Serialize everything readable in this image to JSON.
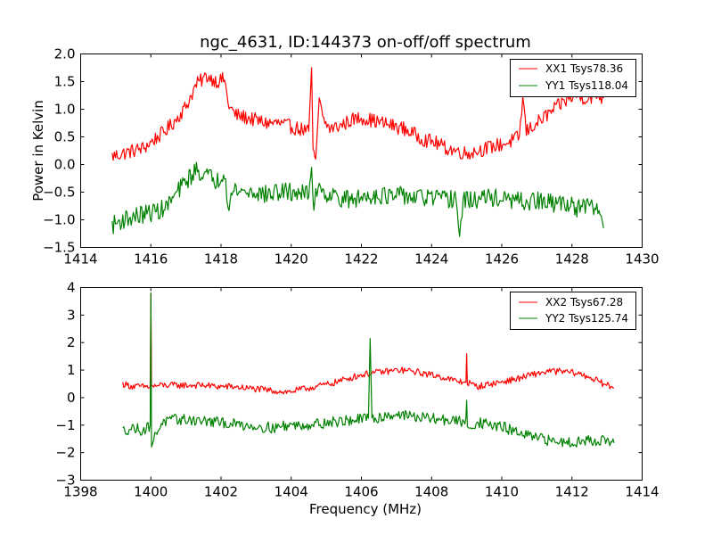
{
  "chart_data": [
    {
      "type": "line",
      "title": "ngc_4631, ID:144373 on-off/off spectrum",
      "xlabel": "",
      "ylabel": "Power in Kelvin",
      "xlim": [
        1414,
        1430
      ],
      "ylim": [
        -1.5,
        2.0
      ],
      "xticks": [
        "1414",
        "1416",
        "1418",
        "1420",
        "1422",
        "1424",
        "1426",
        "1428",
        "1430"
      ],
      "yticks": [
        "−1.5",
        "−1.0",
        "−0.5",
        "0.0",
        "0.5",
        "1.0",
        "1.5",
        "2.0"
      ],
      "xtick_values": [
        1414,
        1416,
        1418,
        1420,
        1422,
        1424,
        1426,
        1428,
        1430
      ],
      "ytick_values": [
        -1.5,
        -1.0,
        -0.5,
        0.0,
        0.5,
        1.0,
        1.5,
        2.0
      ],
      "grid": false,
      "legend_position": "top-right",
      "series": [
        {
          "name": "XX1 Tsys78.36",
          "color": "#ff0000",
          "x": [
            1414.9,
            1415.2,
            1415.5,
            1415.8,
            1416.1,
            1416.4,
            1416.7,
            1417.0,
            1417.3,
            1417.6,
            1417.9,
            1418.1,
            1418.2,
            1418.4,
            1418.7,
            1419.0,
            1419.3,
            1419.6,
            1419.9,
            1420.2,
            1420.5,
            1420.58,
            1420.62,
            1420.7,
            1420.8,
            1420.9,
            1421.1,
            1421.4,
            1421.7,
            1422.0,
            1422.3,
            1422.6,
            1422.9,
            1423.2,
            1423.5,
            1423.8,
            1424.1,
            1424.4,
            1424.7,
            1425.0,
            1425.3,
            1425.6,
            1425.9,
            1426.2,
            1426.5,
            1426.6,
            1426.7,
            1426.9,
            1427.2,
            1427.5,
            1427.8,
            1428.1,
            1428.4,
            1428.7,
            1428.9
          ],
          "y": [
            0.15,
            0.2,
            0.25,
            0.3,
            0.45,
            0.6,
            0.8,
            1.05,
            1.45,
            1.6,
            1.5,
            1.55,
            1.1,
            0.9,
            0.85,
            0.8,
            0.75,
            0.75,
            0.7,
            0.65,
            0.6,
            1.75,
            0.2,
            0.1,
            1.2,
            0.8,
            0.65,
            0.7,
            0.8,
            0.85,
            0.8,
            0.75,
            0.7,
            0.65,
            0.55,
            0.45,
            0.4,
            0.3,
            0.25,
            0.2,
            0.25,
            0.3,
            0.35,
            0.4,
            0.5,
            1.2,
            0.6,
            0.7,
            0.85,
            1.0,
            1.15,
            1.25,
            1.2,
            1.25,
            1.2
          ]
        },
        {
          "name": "YY1 Tsys118.04",
          "color": "#008000",
          "x": [
            1414.9,
            1415.2,
            1415.5,
            1415.8,
            1416.1,
            1416.4,
            1416.7,
            1417.0,
            1417.3,
            1417.6,
            1417.9,
            1418.1,
            1418.2,
            1418.4,
            1418.7,
            1419.0,
            1419.3,
            1419.6,
            1419.9,
            1420.2,
            1420.5,
            1420.58,
            1420.62,
            1420.7,
            1420.8,
            1420.9,
            1421.1,
            1421.4,
            1421.7,
            1422.0,
            1422.3,
            1422.6,
            1422.9,
            1423.2,
            1423.5,
            1423.8,
            1424.1,
            1424.4,
            1424.7,
            1424.8,
            1424.9,
            1425.2,
            1425.5,
            1425.8,
            1426.1,
            1426.4,
            1426.7,
            1427.0,
            1427.3,
            1427.6,
            1427.9,
            1428.2,
            1428.5,
            1428.8,
            1428.9
          ],
          "y": [
            -1.1,
            -1.0,
            -0.95,
            -0.9,
            -0.85,
            -0.8,
            -0.55,
            -0.3,
            -0.1,
            -0.2,
            -0.3,
            -0.1,
            -0.7,
            -0.45,
            -0.5,
            -0.5,
            -0.55,
            -0.5,
            -0.5,
            -0.5,
            -0.55,
            0.05,
            -0.8,
            -0.5,
            -0.3,
            -0.5,
            -0.55,
            -0.6,
            -0.65,
            -0.6,
            -0.55,
            -0.55,
            -0.6,
            -0.55,
            -0.6,
            -0.6,
            -0.6,
            -0.65,
            -0.6,
            -1.3,
            -0.65,
            -0.65,
            -0.6,
            -0.6,
            -0.65,
            -0.65,
            -0.7,
            -0.65,
            -0.7,
            -0.7,
            -0.7,
            -0.8,
            -0.75,
            -0.85,
            -1.15
          ]
        }
      ]
    },
    {
      "type": "line",
      "title": "",
      "xlabel": "Frequency (MHz)",
      "ylabel": "",
      "xlim": [
        1398,
        1414
      ],
      "ylim": [
        -3,
        4
      ],
      "xticks": [
        "1398",
        "1400",
        "1402",
        "1404",
        "1406",
        "1408",
        "1410",
        "1412",
        "1414"
      ],
      "yticks": [
        "−3",
        "−2",
        "−1",
        "0",
        "1",
        "2",
        "3",
        "4"
      ],
      "xtick_values": [
        1398,
        1400,
        1402,
        1404,
        1406,
        1408,
        1410,
        1412,
        1414
      ],
      "ytick_values": [
        -3,
        -2,
        -1,
        0,
        1,
        2,
        3,
        4
      ],
      "grid": false,
      "legend_position": "top-right",
      "series": [
        {
          "name": "XX2 Tsys67.28",
          "color": "#ff0000",
          "x": [
            1399.2,
            1399.5,
            1399.8,
            1399.98,
            1400.0,
            1400.02,
            1400.3,
            1400.7,
            1401.1,
            1401.5,
            1401.9,
            1402.3,
            1402.7,
            1403.1,
            1403.5,
            1403.9,
            1404.3,
            1404.7,
            1405.1,
            1405.5,
            1405.9,
            1406.3,
            1406.7,
            1407.1,
            1407.5,
            1407.9,
            1408.3,
            1408.7,
            1408.98,
            1409.0,
            1409.02,
            1409.3,
            1409.7,
            1410.1,
            1410.5,
            1410.9,
            1411.3,
            1411.7,
            1412.1,
            1412.5,
            1412.9,
            1413.2
          ],
          "y": [
            0.5,
            0.4,
            0.4,
            0.4,
            3.8,
            0.4,
            0.45,
            0.45,
            0.45,
            0.45,
            0.4,
            0.4,
            0.35,
            0.3,
            0.25,
            0.2,
            0.3,
            0.4,
            0.5,
            0.65,
            0.8,
            0.9,
            0.95,
            1.0,
            0.95,
            0.85,
            0.75,
            0.6,
            0.55,
            1.6,
            0.55,
            0.4,
            0.5,
            0.6,
            0.7,
            0.85,
            0.95,
            0.95,
            0.9,
            0.75,
            0.5,
            0.35
          ]
        },
        {
          "name": "YY2 Tsys125.74",
          "color": "#008000",
          "x": [
            1399.2,
            1399.5,
            1399.8,
            1399.98,
            1400.0,
            1400.02,
            1400.3,
            1400.7,
            1401.1,
            1401.5,
            1401.9,
            1402.3,
            1402.7,
            1403.1,
            1403.5,
            1403.9,
            1404.3,
            1404.7,
            1405.1,
            1405.5,
            1405.9,
            1406.2,
            1406.25,
            1406.3,
            1406.7,
            1407.1,
            1407.5,
            1407.9,
            1408.3,
            1408.7,
            1408.98,
            1409.0,
            1409.02,
            1409.3,
            1409.7,
            1410.1,
            1410.5,
            1410.9,
            1411.3,
            1411.7,
            1412.1,
            1412.5,
            1412.9,
            1413.2
          ],
          "y": [
            -1.2,
            -1.1,
            -1.2,
            -1.0,
            3.8,
            -1.7,
            -0.9,
            -0.8,
            -0.8,
            -0.85,
            -0.9,
            -0.95,
            -1.0,
            -1.05,
            -1.1,
            -1.0,
            -1.0,
            -0.95,
            -0.9,
            -0.85,
            -0.8,
            -0.75,
            2.15,
            -0.8,
            -0.65,
            -0.6,
            -0.7,
            -0.75,
            -0.8,
            -0.85,
            -0.9,
            -0.1,
            -1.1,
            -0.9,
            -1.0,
            -1.1,
            -1.3,
            -1.45,
            -1.55,
            -1.6,
            -1.6,
            -1.55,
            -1.55,
            -1.65
          ]
        }
      ]
    }
  ]
}
